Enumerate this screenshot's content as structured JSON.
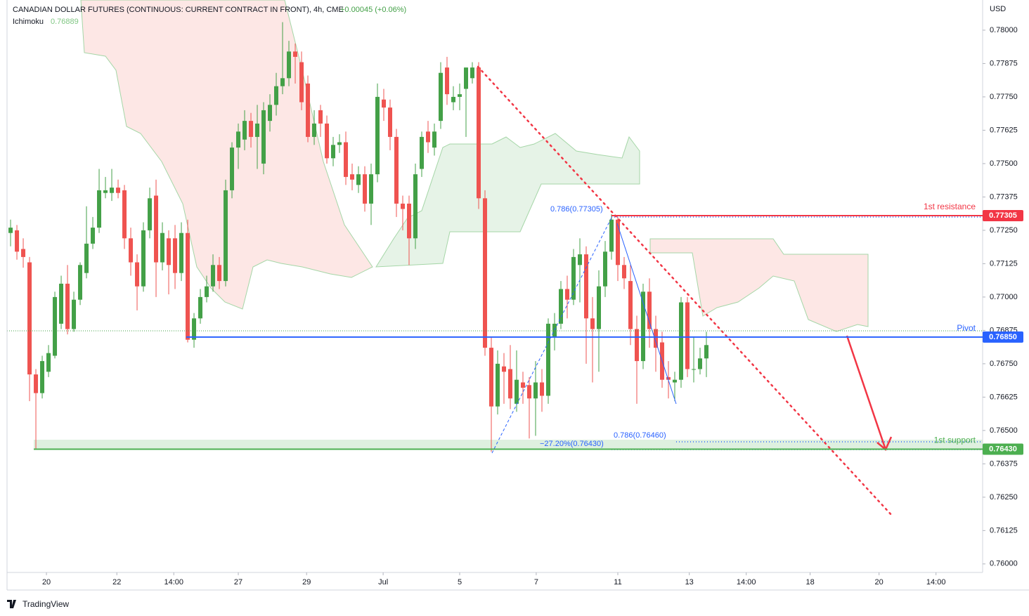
{
  "chart_data": {
    "type": "candlestick",
    "title": "CANADIAN DOLLAR FUTURES (CONTINUOUS: CURRENT CONTRACT IN FRONT), 4h, CME",
    "change": "+0.00045 (+0.06%)",
    "indicator": {
      "name": "Ichimoku",
      "value": 0.76889
    },
    "currency": "USD",
    "brand": "TradingView",
    "up_color": "#43a047",
    "down_color": "#ef5350",
    "grid": false,
    "xlim": [
      -0.56,
      153.67
    ],
    "xticks": [
      {
        "value": 5.67,
        "label": "20"
      },
      {
        "value": 16.8,
        "label": "22"
      },
      {
        "value": 25.8,
        "label": "14:00"
      },
      {
        "value": 36,
        "label": "27"
      },
      {
        "value": 46.8,
        "label": "29"
      },
      {
        "value": 58.9,
        "label": "Jul"
      },
      {
        "value": 71,
        "label": "5"
      },
      {
        "value": 83.1,
        "label": "7"
      },
      {
        "value": 96,
        "label": "11"
      },
      {
        "value": 107.3,
        "label": "13"
      },
      {
        "value": 116.3,
        "label": "14:00"
      },
      {
        "value": 126.4,
        "label": "18"
      },
      {
        "value": 137.3,
        "label": "20"
      },
      {
        "value": 146.3,
        "label": "14:00"
      }
    ],
    "ylim": [
      0.75968,
      0.78113
    ],
    "yticks": [
      {
        "value": 0.78,
        "label": "0.78000"
      },
      {
        "value": 0.77875,
        "label": "0.77875"
      },
      {
        "value": 0.7775,
        "label": "0.77750"
      },
      {
        "value": 0.77625,
        "label": "0.77625"
      },
      {
        "value": 0.775,
        "label": "0.77500"
      },
      {
        "value": 0.77375,
        "label": "0.77375"
      },
      {
        "value": 0.7725,
        "label": "0.77250"
      },
      {
        "value": 0.77125,
        "label": "0.77125"
      },
      {
        "value": 0.77,
        "label": "0.77000"
      },
      {
        "value": 0.76875,
        "label": "0.76875"
      },
      {
        "value": 0.7675,
        "label": "0.76750"
      },
      {
        "value": 0.76625,
        "label": "0.76625"
      },
      {
        "value": 0.765,
        "label": "0.76500"
      },
      {
        "value": 0.76375,
        "label": "0.76375"
      },
      {
        "value": 0.7625,
        "label": "0.76250"
      },
      {
        "value": 0.76125,
        "label": "0.76125"
      },
      {
        "value": 0.76,
        "label": "0.76000"
      }
    ],
    "ohlc": {
      "open": [
        0.7724,
        0.7725,
        0.7718,
        0.7713,
        0.7671,
        0.7664,
        0.7672,
        0.7678,
        0.769,
        0.7705,
        0.7688,
        0.7699,
        0.7709,
        0.772,
        0.7726,
        0.7739,
        0.7739,
        0.7741,
        0.774,
        0.7722,
        0.7713,
        0.7704,
        0.7725,
        0.7738,
        0.7713,
        0.7722,
        0.7722,
        0.7709,
        0.7724,
        0.7684,
        0.7692,
        0.77,
        0.7704,
        0.7712,
        0.7706,
        0.774,
        0.7756,
        0.7759,
        0.7766,
        0.776,
        0.775,
        0.7766,
        0.7772,
        0.7779,
        0.7782,
        0.7792,
        0.7788,
        0.778,
        0.776,
        0.777,
        0.7765,
        0.7752,
        0.7757,
        0.7758,
        0.7746,
        0.7742,
        0.7746,
        0.7735,
        0.7746,
        0.7774,
        0.7771,
        0.776,
        0.7735,
        0.7735,
        0.7722,
        0.7748,
        0.7762,
        0.7756,
        0.7766,
        0.7786,
        0.7773,
        0.7775,
        0.7778,
        0.7782,
        0.7786,
        0.7737,
        0.7681,
        0.7659,
        0.7674,
        0.7673,
        0.766,
        0.7668,
        0.7667,
        0.7662,
        0.7668,
        0.7663,
        0.7685,
        0.769,
        0.7703,
        0.7699,
        0.7712,
        0.7716,
        0.7692,
        0.7688,
        0.7704,
        0.7717,
        0.7729,
        0.7712,
        0.7706,
        0.7688,
        0.7676,
        0.7702,
        0.7688,
        0.7683,
        0.767,
        0.7668,
        0.7669,
        0.7698,
        0.7673,
        0.7673,
        0.7677
      ],
      "high": [
        0.7729,
        0.7727,
        0.7722,
        0.7715,
        0.7673,
        0.7678,
        0.7682,
        0.7702,
        0.7708,
        0.7712,
        0.7702,
        0.7713,
        0.7734,
        0.773,
        0.7748,
        0.7745,
        0.7748,
        0.7744,
        0.7742,
        0.7726,
        0.7716,
        0.7728,
        0.7741,
        0.7744,
        0.7728,
        0.7725,
        0.7727,
        0.7728,
        0.7729,
        0.7694,
        0.7703,
        0.7708,
        0.7716,
        0.7715,
        0.7744,
        0.7758,
        0.7765,
        0.777,
        0.7769,
        0.7772,
        0.7773,
        0.7776,
        0.7784,
        0.7803,
        0.7796,
        0.7795,
        0.7792,
        0.7783,
        0.777,
        0.7772,
        0.7768,
        0.776,
        0.7761,
        0.7762,
        0.775,
        0.7749,
        0.7749,
        0.775,
        0.778,
        0.7778,
        0.7774,
        0.7763,
        0.7738,
        0.7738,
        0.775,
        0.7762,
        0.7766,
        0.7765,
        0.7788,
        0.779,
        0.7779,
        0.778,
        0.7786,
        0.7788,
        0.7788,
        0.774,
        0.7685,
        0.768,
        0.7679,
        0.7682,
        0.768,
        0.7672,
        0.767,
        0.7676,
        0.7673,
        0.7692,
        0.7694,
        0.7706,
        0.7708,
        0.7718,
        0.7722,
        0.7719,
        0.77,
        0.771,
        0.7721,
        0.7731,
        0.773,
        0.7715,
        0.7712,
        0.7693,
        0.7705,
        0.7707,
        0.7693,
        0.7687,
        0.7676,
        0.7672,
        0.77,
        0.77,
        0.7685,
        0.7681,
        0.7687
      ],
      "low": [
        0.7719,
        0.7714,
        0.7711,
        0.7661,
        0.7643,
        0.7662,
        0.767,
        0.7677,
        0.7688,
        0.7686,
        0.7687,
        0.7697,
        0.7707,
        0.7718,
        0.7724,
        0.7737,
        0.7736,
        0.7737,
        0.7718,
        0.7708,
        0.7695,
        0.7702,
        0.7722,
        0.77,
        0.771,
        0.7701,
        0.7703,
        0.7706,
        0.7683,
        0.7681,
        0.769,
        0.7698,
        0.7702,
        0.7703,
        0.7704,
        0.7737,
        0.7748,
        0.7755,
        0.7756,
        0.7748,
        0.7746,
        0.7762,
        0.7768,
        0.7776,
        0.7779,
        0.778,
        0.777,
        0.7758,
        0.7757,
        0.776,
        0.775,
        0.7749,
        0.7754,
        0.7742,
        0.774,
        0.7739,
        0.7732,
        0.7727,
        0.7743,
        0.7766,
        0.7755,
        0.773,
        0.7725,
        0.7712,
        0.7718,
        0.7745,
        0.7754,
        0.7753,
        0.7763,
        0.7772,
        0.777,
        0.777,
        0.776,
        0.778,
        0.7733,
        0.7678,
        0.7642,
        0.7656,
        0.766,
        0.7658,
        0.7657,
        0.766,
        0.7647,
        0.7648,
        0.7657,
        0.766,
        0.768,
        0.7688,
        0.7692,
        0.7697,
        0.7698,
        0.7675,
        0.7668,
        0.7672,
        0.77,
        0.7714,
        0.7706,
        0.7703,
        0.7682,
        0.766,
        0.7673,
        0.7681,
        0.7672,
        0.7666,
        0.7662,
        0.7661,
        0.7666,
        0.767,
        0.7668,
        0.7671,
        0.767
      ],
      "close": [
        0.7726,
        0.7717,
        0.7715,
        0.7671,
        0.7664,
        0.7676,
        0.7679,
        0.77,
        0.7705,
        0.7688,
        0.7699,
        0.7712,
        0.772,
        0.7726,
        0.774,
        0.774,
        0.7741,
        0.7739,
        0.7722,
        0.7713,
        0.7704,
        0.7725,
        0.7737,
        0.7713,
        0.7724,
        0.7712,
        0.7709,
        0.7724,
        0.7684,
        0.7692,
        0.77,
        0.7704,
        0.7712,
        0.7706,
        0.774,
        0.7756,
        0.7762,
        0.7766,
        0.776,
        0.7765,
        0.777,
        0.7772,
        0.7779,
        0.7782,
        0.7792,
        0.779,
        0.7773,
        0.776,
        0.7765,
        0.7765,
        0.7752,
        0.7757,
        0.7758,
        0.7745,
        0.7744,
        0.7746,
        0.7735,
        0.7746,
        0.7775,
        0.7771,
        0.776,
        0.7735,
        0.7733,
        0.7722,
        0.7746,
        0.776,
        0.7758,
        0.7762,
        0.7784,
        0.7776,
        0.7775,
        0.7776,
        0.7786,
        0.7786,
        0.7737,
        0.7681,
        0.7659,
        0.7675,
        0.7672,
        0.7662,
        0.7669,
        0.7666,
        0.7662,
        0.7668,
        0.7663,
        0.769,
        0.769,
        0.7703,
        0.7699,
        0.7715,
        0.7716,
        0.7692,
        0.7688,
        0.7704,
        0.7717,
        0.7729,
        0.7712,
        0.7707,
        0.7688,
        0.7676,
        0.7702,
        0.7688,
        0.7681,
        0.7669,
        0.7669,
        0.7669,
        0.7698,
        0.7673,
        0.7673,
        0.7677,
        0.7682
      ]
    },
    "levels": [
      {
        "label": "1st resistance",
        "value": 0.77305,
        "value_label": "0.77305",
        "color": "#f23645"
      },
      {
        "label": "Pivot",
        "value": 0.7685,
        "value_label": "0.76850",
        "color": "#2962ff"
      },
      {
        "label": "1st support",
        "value": 0.7643,
        "value_label": "0.76430",
        "color": "#4caf50"
      }
    ],
    "fib_labels": [
      "0.786(0.77305)",
      "0.786(0.76460)",
      "−27.20%(0.76430)"
    ]
  }
}
